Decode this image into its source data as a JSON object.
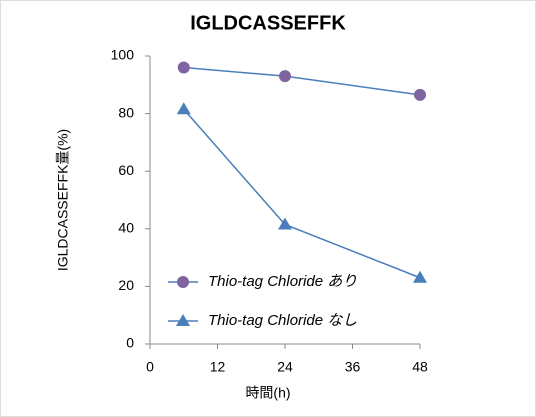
{
  "chart_data": {
    "type": "line",
    "title": "IGLDCASSEFFK",
    "x_label": "時間(h)",
    "y_label": "IGLDCASSEFFK量(%)",
    "x": [
      6,
      24,
      48
    ],
    "series": [
      {
        "name": "Thio-tag Chloride あり",
        "color": "#8064a2",
        "line_color": "#4a7ebb",
        "marker": "circle",
        "values": [
          96,
          93,
          86.5
        ]
      },
      {
        "name": "Thio-tag Chloride なし",
        "color": "#4a7ebb",
        "line_color": "#4a7ebb",
        "marker": "triangle",
        "values": [
          81.5,
          41.5,
          23
        ]
      }
    ],
    "xlim": [
      0,
      48
    ],
    "xticks": [
      0,
      12,
      24,
      36,
      48
    ],
    "ylim": [
      0,
      100
    ],
    "yticks": [
      0,
      20,
      40,
      60,
      80,
      100
    ],
    "grid": false,
    "legend": "lower-right"
  }
}
